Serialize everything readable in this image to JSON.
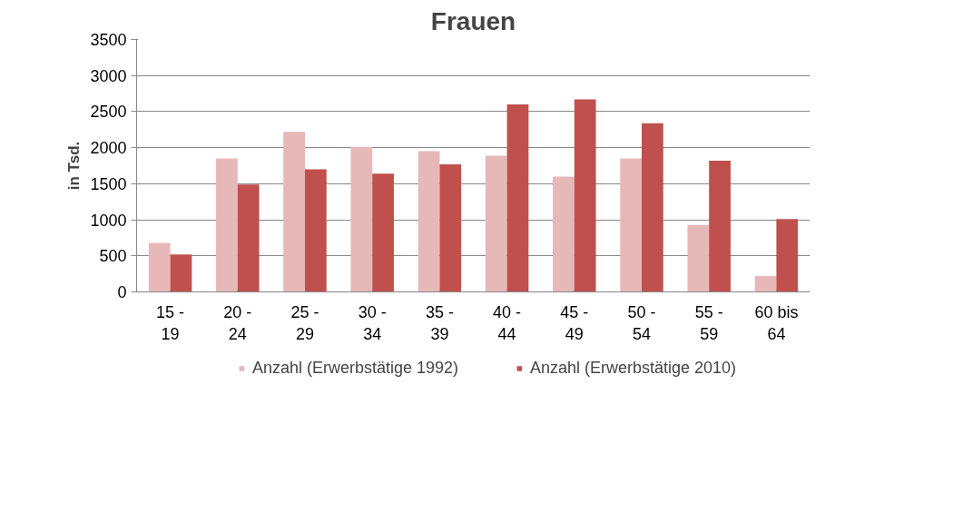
{
  "chart_data": {
    "type": "bar",
    "title": "Frauen",
    "ylabel": "in Tsd.",
    "categories": [
      "15 - 19",
      "20 - 24",
      "25 - 29",
      "30 - 34",
      "35 - 39",
      "40 - 44",
      "45 - 49",
      "50 - 54",
      "55 - 59",
      "60 bis 64"
    ],
    "series": [
      {
        "name": "Anzahl (Erwerbstätige 1992)",
        "color": "#e6b9b8",
        "values": [
          680,
          1850,
          2220,
          2010,
          1950,
          1890,
          1600,
          1850,
          930,
          220
        ]
      },
      {
        "name": "Anzahl (Erwerbstätige 2010)",
        "color": "#c0504d",
        "values": [
          520,
          1490,
          1700,
          1640,
          1770,
          2600,
          2670,
          2340,
          1820,
          1010
        ]
      }
    ],
    "ylim": [
      0,
      3500
    ],
    "yticks": [
      0,
      500,
      1000,
      1500,
      2000,
      2500,
      3000,
      3500
    ],
    "grid": "y",
    "legend": "bottom"
  }
}
